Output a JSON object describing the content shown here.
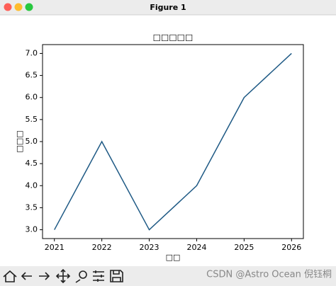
{
  "window": {
    "title": "Figure 1",
    "watermark": "CSDN @Astro Ocean 倪钰桐"
  },
  "chart_data": {
    "type": "line",
    "title": "□□□□□",
    "x_label": "□□",
    "y_label": "□□□",
    "x": [
      2021,
      2022,
      2023,
      2024,
      2025,
      2026
    ],
    "values": [
      3,
      5,
      3,
      4,
      6,
      7
    ],
    "color": "#1f5a85",
    "xlim": [
      2020.75,
      2026.25
    ],
    "ylim": [
      2.8,
      7.2
    ],
    "xticks": [
      2021,
      2022,
      2023,
      2024,
      2025,
      2026
    ],
    "yticks": [
      {
        "value": 3,
        "label": "3.0"
      },
      {
        "value": 3.5,
        "label": "3.5"
      },
      {
        "value": 4,
        "label": "4.0"
      },
      {
        "value": 4.5,
        "label": "4.5"
      },
      {
        "value": 5,
        "label": "5.0"
      },
      {
        "value": 5.5,
        "label": "5.5"
      },
      {
        "value": 6,
        "label": "6.0"
      },
      {
        "value": 6.5,
        "label": "6.5"
      },
      {
        "value": 7,
        "label": "7.0"
      }
    ],
    "grid": false
  }
}
